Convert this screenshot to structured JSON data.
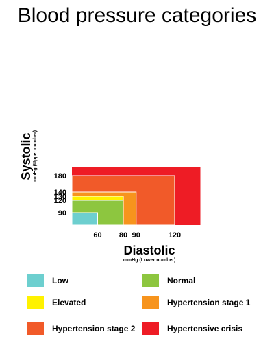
{
  "title": "Blood pressure categories",
  "chart_data": {
    "type": "area",
    "title": "Blood pressure categories",
    "ylabel": "Systolic",
    "ylabel_sub": "mmHg (Upper number)",
    "xlabel": "Diastolic",
    "xlabel_sub": "mmHg (Lower number)",
    "y_ticks": [
      90,
      120,
      130,
      140,
      180
    ],
    "x_ticks": [
      60,
      80,
      90,
      120
    ],
    "legend_placement": "bottom",
    "categories": [
      {
        "name": "Hypertensive crisis",
        "color": "#ee1c25",
        "systolic_max": 200,
        "diastolic_max": 140
      },
      {
        "name": "Hypertension stage 2",
        "color": "#f15a29",
        "systolic_max": 180,
        "diastolic_max": 120
      },
      {
        "name": "Hypertension stage 1",
        "color": "#f7941d",
        "systolic_max": 140,
        "diastolic_max": 90
      },
      {
        "name": "Elevated",
        "color": "#fff200",
        "systolic_max": 130,
        "diastolic_max": 80
      },
      {
        "name": "Normal",
        "color": "#8dc63f",
        "systolic_max": 120,
        "diastolic_max": 80
      },
      {
        "name": "Low",
        "color": "#6dcfcf",
        "systolic_max": 90,
        "diastolic_max": 60
      }
    ]
  },
  "legend": [
    {
      "label": "Low",
      "color": "#6dcfcf"
    },
    {
      "label": "Normal",
      "color": "#8dc63f"
    },
    {
      "label": "Elevated",
      "color": "#fff200"
    },
    {
      "label": "Hypertension stage 1",
      "color": "#f7941d"
    },
    {
      "label": "Hypertension stage 2",
      "color": "#f15a29"
    },
    {
      "label": "Hypertensive crisis",
      "color": "#ee1c25"
    }
  ]
}
